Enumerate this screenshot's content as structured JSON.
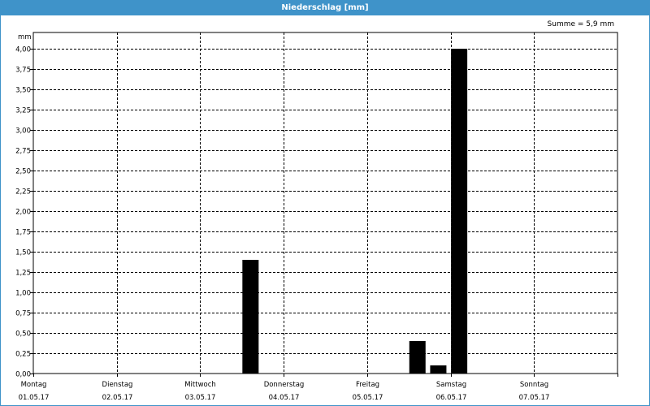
{
  "window": {
    "title": "Niederschlag [mm]"
  },
  "summary": {
    "text": "Summe = 5,9 mm"
  },
  "chart_data": {
    "type": "bar",
    "title": "Niederschlag [mm]",
    "ylabel": "mm",
    "ylim": [
      0,
      4
    ],
    "ytick_step": 0.25,
    "ytick_labels": [
      "0,00",
      "0,25",
      "0,50",
      "0,75",
      "1,00",
      "1,25",
      "1,50",
      "1,75",
      "2,00",
      "2,25",
      "2,50",
      "2,75",
      "3,00",
      "3,25",
      "3,50",
      "3,75",
      "4,00"
    ],
    "days": [
      {
        "name": "Montag",
        "date": "01.05.17"
      },
      {
        "name": "Dienstag",
        "date": "02.05.17"
      },
      {
        "name": "Mittwoch",
        "date": "03.05.17"
      },
      {
        "name": "Donnerstag",
        "date": "04.05.17"
      },
      {
        "name": "Freitag",
        "date": "05.05.17"
      },
      {
        "name": "Samstag",
        "date": "06.05.17"
      },
      {
        "name": "Sonntag",
        "date": "07.05.17"
      }
    ],
    "bars": [
      {
        "time": "03.05.17 00:00",
        "value": 1.4
      },
      {
        "time": "05.05.17 00:00",
        "value": 0.4
      },
      {
        "time": "05.05.17 06:00",
        "value": 0.1
      },
      {
        "time": "05.05.17 12:00",
        "value": 4.0
      }
    ],
    "bar_color": "#000000",
    "grid": true,
    "grid_style": "dashed"
  }
}
